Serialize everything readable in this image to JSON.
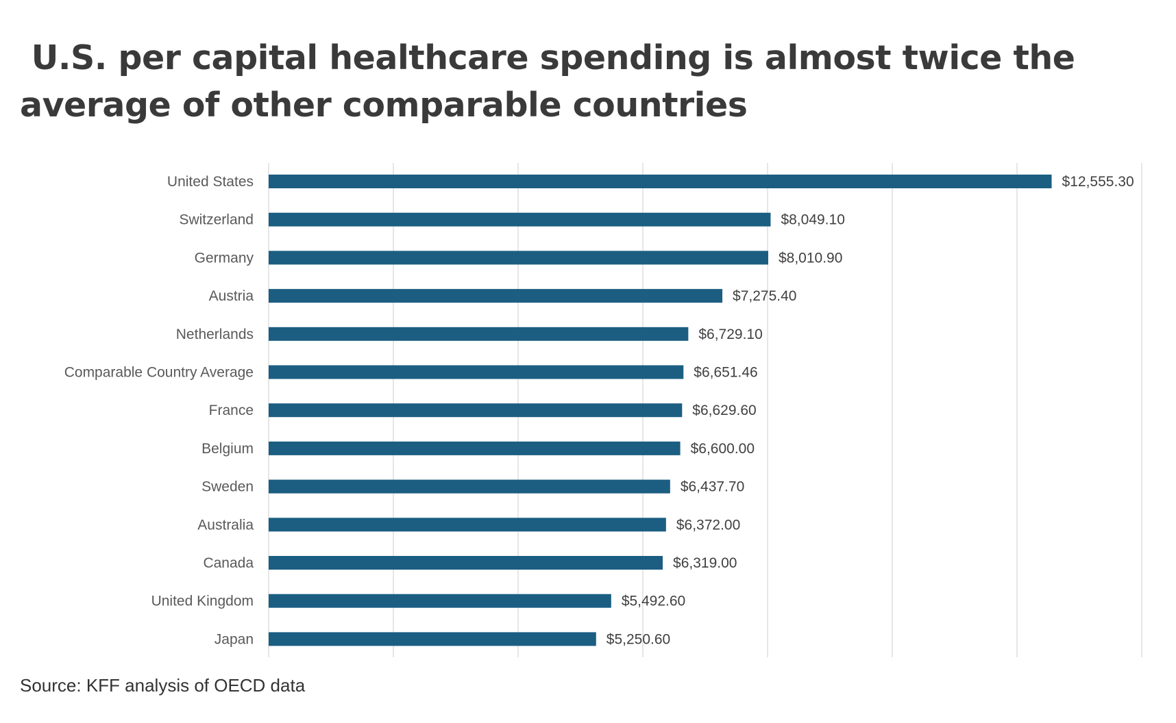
{
  "title": " U.S. per capital healthcare spending is almost twice the average of other comparable countries",
  "source": "Source: KFF analysis of OECD data",
  "colors": {
    "bar": "#1b5e82",
    "gridline": "#d9d9d9",
    "category_text": "#595959",
    "label_text": "#404040",
    "title_text": "#3a3a3a"
  },
  "chart_data": {
    "type": "bar",
    "orientation": "horizontal",
    "categories": [
      "United States",
      "Switzerland",
      "Germany",
      "Austria",
      "Netherlands",
      "Comparable Country Average",
      "France",
      "Belgium",
      "Sweden",
      "Australia",
      "Canada",
      "United Kingdom",
      "Japan"
    ],
    "values": [
      12555.3,
      8049.1,
      8010.9,
      7275.4,
      6729.1,
      6651.46,
      6629.6,
      6600.0,
      6437.7,
      6372.0,
      6319.0,
      5492.6,
      5250.6
    ],
    "data_labels": [
      "$12,555.30",
      "$8,049.10",
      "$8,010.90",
      "$7,275.40",
      "$6,729.10",
      "$6,651.46",
      "$6,629.60",
      "$6,600.00",
      "$6,437.70",
      "$6,372.00",
      "$6,319.00",
      "$5,492.60",
      "$5,250.60"
    ],
    "xlim": [
      0,
      14000
    ],
    "xlabel": "",
    "ylabel": "",
    "grid": true,
    "legend": false
  }
}
